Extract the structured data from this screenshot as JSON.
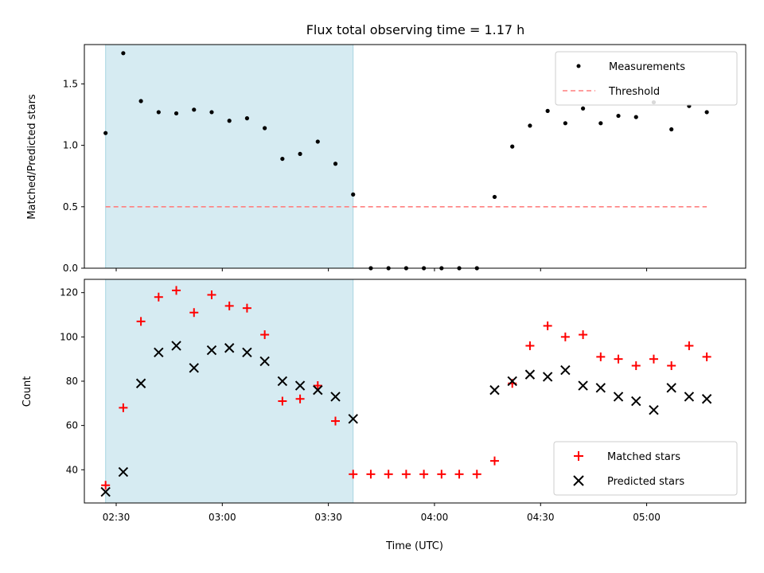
{
  "chart_data": [
    {
      "type": "scatter",
      "title": "Flux total observing time = 1.17 h",
      "xlabel": "",
      "ylabel": "Matched/Predicted stars",
      "ylim": [
        0,
        1.82
      ],
      "yticks": [
        0.0,
        0.5,
        1.0,
        1.5
      ],
      "yticklabels": [
        "0.0",
        "0.5",
        "1.0",
        "1.5"
      ],
      "xlim": [
        "02:21",
        "05:28"
      ],
      "xticks": [
        "02:30",
        "03:00",
        "03:30",
        "04:00",
        "04:30",
        "05:00"
      ],
      "xticklabels": [],
      "shaded_region": {
        "start": "02:27",
        "end": "03:37",
        "color": "#add8e6"
      },
      "legend_position": "upper right",
      "series": [
        {
          "name": "Measurements",
          "marker": "dot",
          "color": "#000000",
          "x": [
            "02:27",
            "02:32",
            "02:37",
            "02:42",
            "02:47",
            "02:52",
            "02:57",
            "03:02",
            "03:07",
            "03:12",
            "03:17",
            "03:22",
            "03:27",
            "03:32",
            "03:37",
            "03:42",
            "03:47",
            "03:52",
            "03:57",
            "04:02",
            "04:07",
            "04:12",
            "04:17",
            "04:22",
            "04:27",
            "04:32",
            "04:37",
            "04:42",
            "04:47",
            "04:52",
            "04:57",
            "05:02",
            "05:07",
            "05:12",
            "05:17"
          ],
          "y": [
            1.1,
            1.75,
            1.36,
            1.27,
            1.26,
            1.29,
            1.27,
            1.2,
            1.22,
            1.14,
            0.89,
            0.93,
            1.03,
            0.85,
            0.6,
            0,
            0,
            0,
            0,
            0,
            0,
            0,
            0.58,
            0.99,
            1.16,
            1.28,
            1.18,
            1.3,
            1.18,
            1.24,
            1.23,
            1.35,
            1.13,
            1.32,
            1.27
          ]
        },
        {
          "name": "Threshold",
          "marker": "dashed-line",
          "color": "#ff7f7f",
          "x": [
            "02:27",
            "05:17"
          ],
          "y": [
            0.5,
            0.5
          ]
        }
      ]
    },
    {
      "type": "scatter",
      "title": "",
      "xlabel": "Time (UTC)",
      "ylabel": "Count",
      "ylim": [
        25,
        126
      ],
      "yticks": [
        40,
        60,
        80,
        100,
        120
      ],
      "yticklabels": [
        "40",
        "60",
        "80",
        "100",
        "120"
      ],
      "xlim": [
        "02:21",
        "05:28"
      ],
      "xticks": [
        "02:30",
        "03:00",
        "03:30",
        "04:00",
        "04:30",
        "05:00"
      ],
      "xticklabels": [
        "02:30",
        "03:00",
        "03:30",
        "04:00",
        "04:30",
        "05:00"
      ],
      "shaded_region": {
        "start": "02:27",
        "end": "03:37",
        "color": "#add8e6"
      },
      "legend_position": "lower right",
      "series": [
        {
          "name": "Matched stars",
          "marker": "plus",
          "color": "#ff0000",
          "x": [
            "02:27",
            "02:32",
            "02:37",
            "02:42",
            "02:47",
            "02:52",
            "02:57",
            "03:02",
            "03:07",
            "03:12",
            "03:17",
            "03:22",
            "03:27",
            "03:32",
            "03:37",
            "03:42",
            "03:47",
            "03:52",
            "03:57",
            "04:02",
            "04:07",
            "04:12",
            "04:17",
            "04:22",
            "04:27",
            "04:32",
            "04:37",
            "04:42",
            "04:47",
            "04:52",
            "04:57",
            "05:02",
            "05:07",
            "05:12",
            "05:17"
          ],
          "y": [
            33,
            68,
            107,
            118,
            121,
            111,
            119,
            114,
            113,
            101,
            71,
            72,
            78,
            62,
            38,
            38,
            38,
            38,
            38,
            38,
            38,
            38,
            44,
            79,
            96,
            105,
            100,
            101,
            91,
            90,
            87,
            90,
            87,
            96,
            91
          ]
        },
        {
          "name": "Predicted stars",
          "marker": "x",
          "color": "#000000",
          "x": [
            "02:27",
            "02:32",
            "02:37",
            "02:42",
            "02:47",
            "02:52",
            "02:57",
            "03:02",
            "03:07",
            "03:12",
            "03:17",
            "03:22",
            "03:27",
            "03:32",
            "03:37",
            "04:17",
            "04:22",
            "04:27",
            "04:32",
            "04:37",
            "04:42",
            "04:47",
            "04:52",
            "04:57",
            "05:02",
            "05:07",
            "05:12",
            "05:17"
          ],
          "y": [
            30,
            39,
            79,
            93,
            96,
            86,
            94,
            95,
            93,
            89,
            80,
            78,
            76,
            73,
            63,
            76,
            80,
            83,
            82,
            85,
            78,
            77,
            73,
            71,
            67,
            77,
            73,
            72
          ]
        }
      ]
    }
  ]
}
